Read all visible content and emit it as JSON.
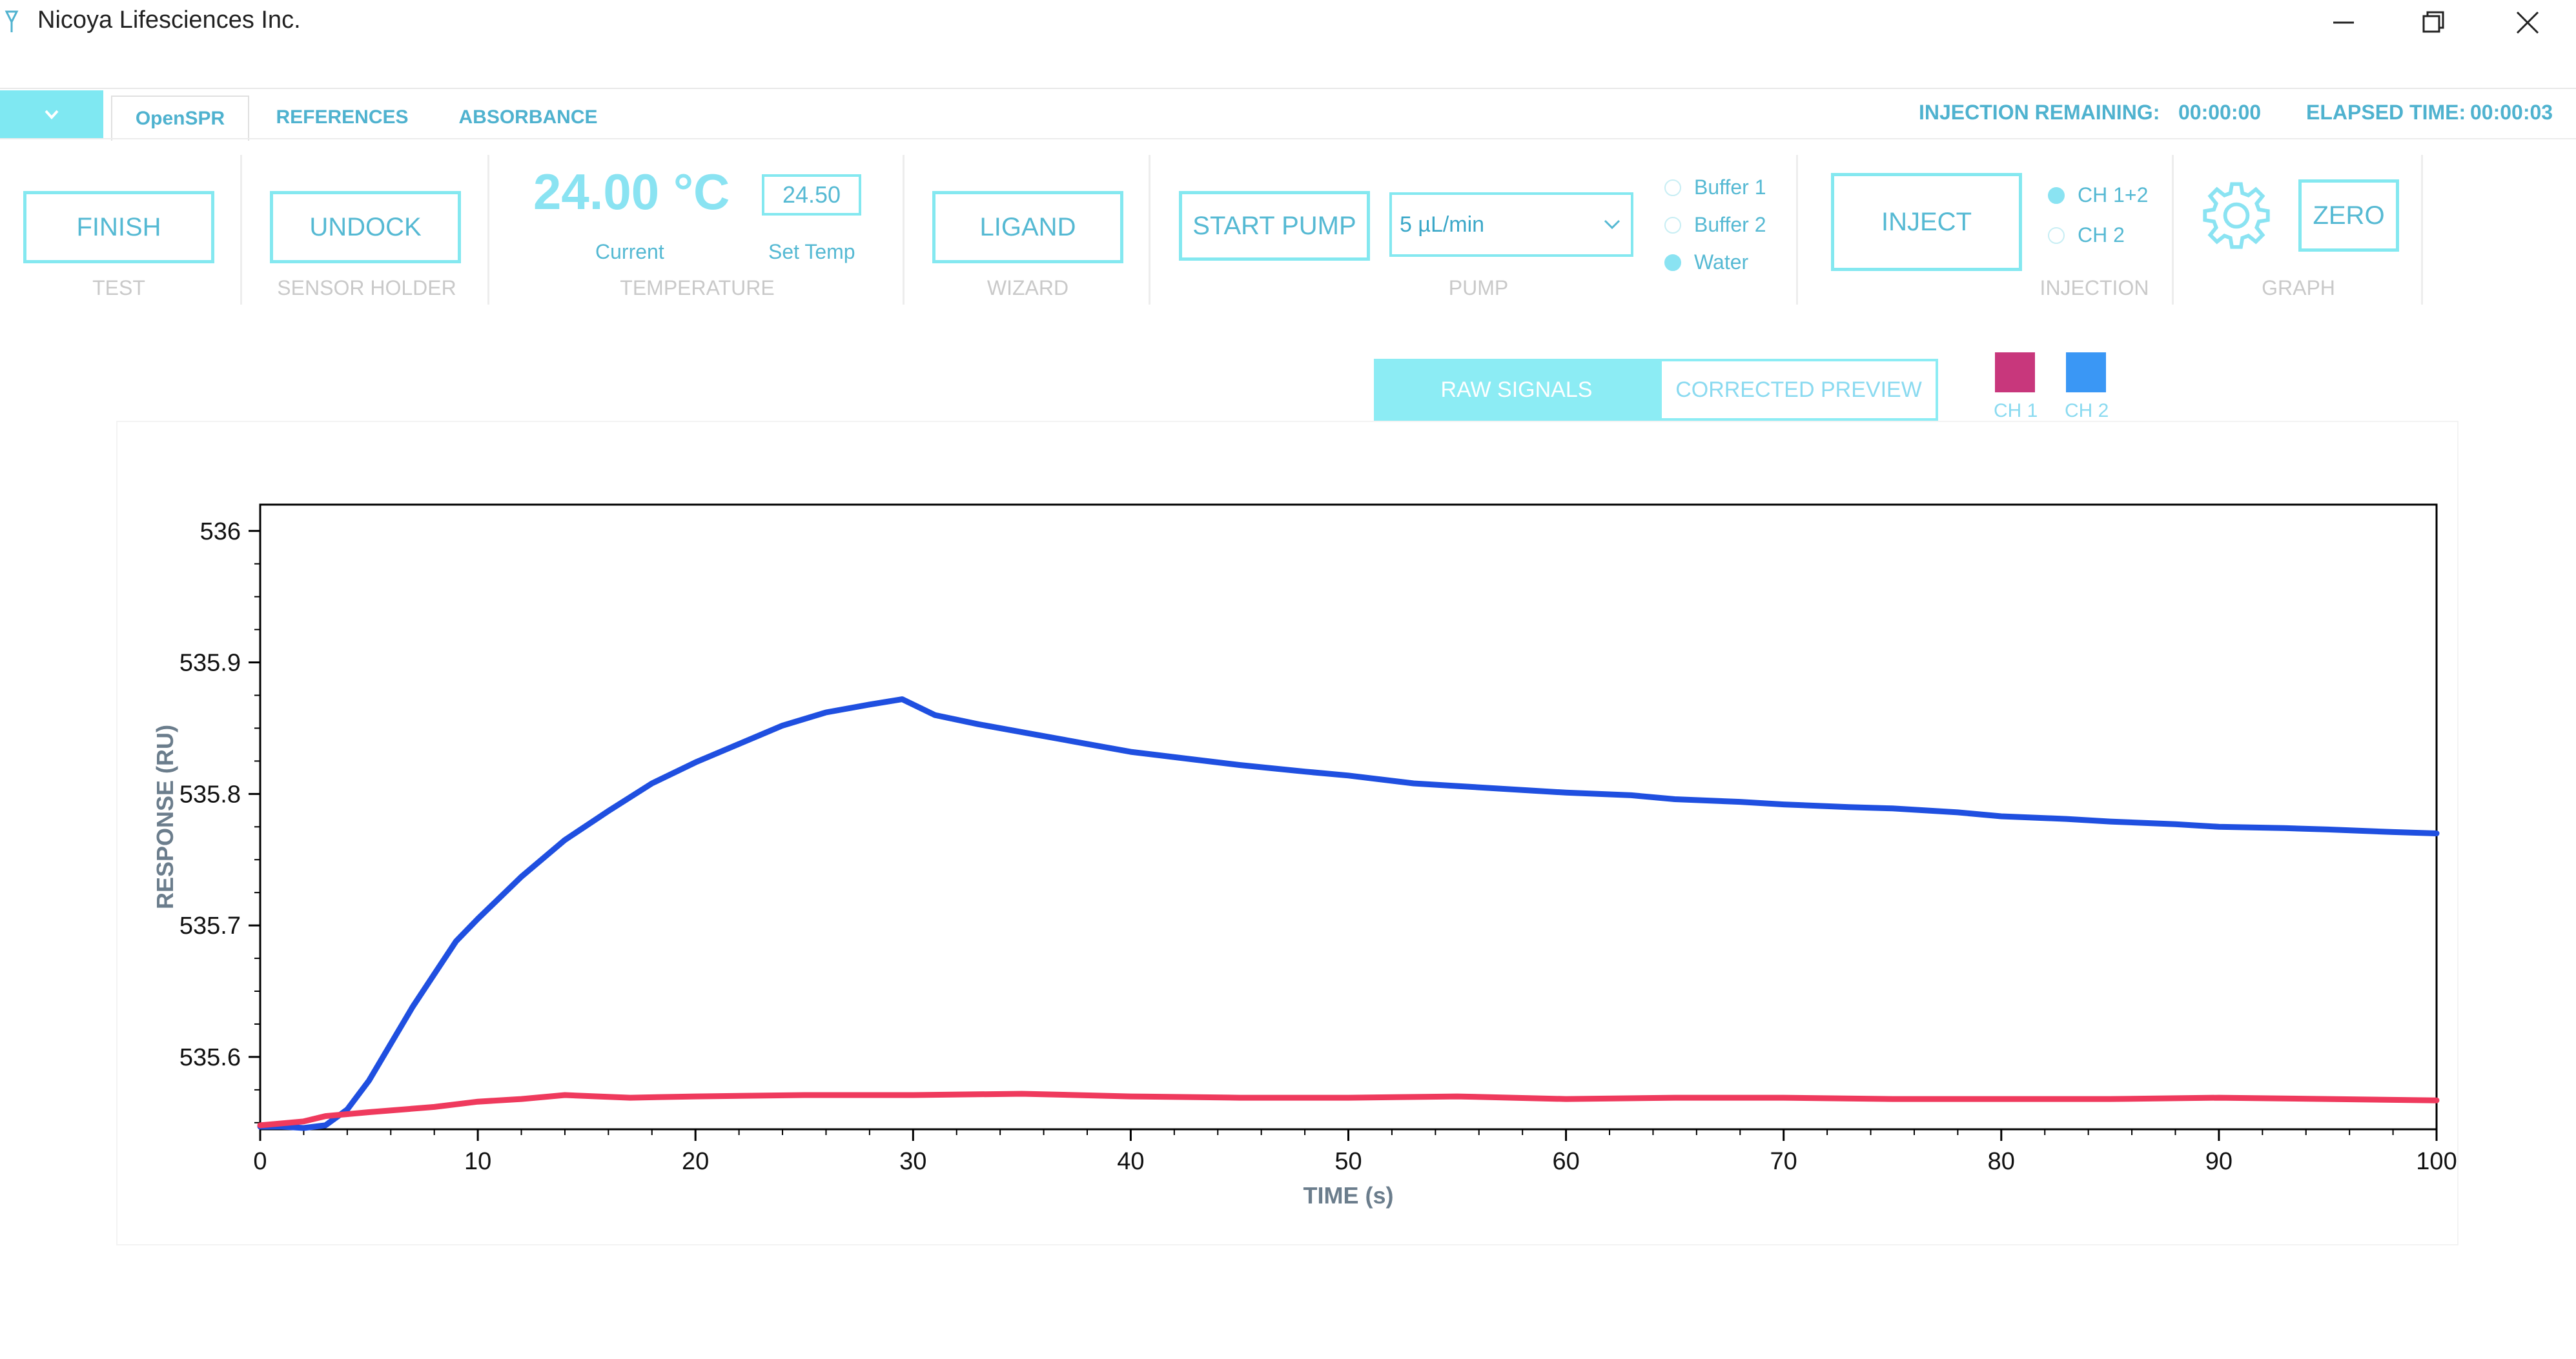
{
  "window": {
    "title": "Nicoya Lifesciences Inc.",
    "controls": {
      "minimize": "minimize-icon",
      "maximize": "restore-icon",
      "close": "close-icon"
    }
  },
  "tabs": [
    {
      "label": "OpenSPR",
      "active": true
    },
    {
      "label": "REFERENCES",
      "active": false
    },
    {
      "label": "ABSORBANCE",
      "active": false
    }
  ],
  "status": {
    "injection_remaining_label": "INJECTION REMAINING:",
    "injection_remaining_value": "00:00:00",
    "elapsed_label": "ELAPSED TIME:",
    "elapsed_value": "00:00:03"
  },
  "toolbar": {
    "test": {
      "button": "FINISH",
      "label": "TEST"
    },
    "sensor_holder": {
      "button": "UNDOCK",
      "label": "SENSOR HOLDER"
    },
    "temperature": {
      "current_value": "24.00 °C",
      "current_label": "Current",
      "set_value": "24.50",
      "set_label": "Set Temp",
      "label": "TEMPERATURE"
    },
    "wizard": {
      "button": "LIGAND",
      "label": "WIZARD"
    },
    "pump": {
      "button": "START PUMP",
      "flow_rate": "5 µL/min",
      "options": [
        {
          "label": "Buffer 1",
          "selected": false
        },
        {
          "label": "Buffer 2",
          "selected": false
        },
        {
          "label": "Water",
          "selected": true
        }
      ],
      "label": "PUMP"
    },
    "injection": {
      "button": "INJECT",
      "options": [
        {
          "label": "CH 1+2",
          "selected": true
        },
        {
          "label": "CH 2",
          "selected": false
        }
      ],
      "label": "INJECTION"
    },
    "graph": {
      "settings_icon": "gear-icon",
      "button": "ZERO",
      "label": "GRAPH"
    }
  },
  "graph_toggle": {
    "raw": "RAW SIGNALS",
    "corrected": "CORRECTED PREVIEW",
    "active": "raw"
  },
  "channels": [
    {
      "label": "CH 1",
      "color": "#c8377c"
    },
    {
      "label": "CH 2",
      "color": "#3a97f5"
    }
  ],
  "colors": {
    "accent": "#84e8f0",
    "accent_text": "#55b9d3",
    "ch1_line": "#ef3a5d",
    "ch2_line": "#1f4fe0"
  },
  "chart_data": {
    "type": "line",
    "xlabel": "TIME (s)",
    "ylabel": "RESPONSE (RU)",
    "xlim": [
      0,
      100
    ],
    "ylim": [
      535.545,
      536.02
    ],
    "xticks": [
      0,
      10,
      20,
      30,
      40,
      50,
      60,
      70,
      80,
      90,
      100
    ],
    "yticks": [
      535.6,
      535.7,
      535.8,
      535.9,
      536
    ],
    "ytick_labels": [
      "535.6",
      "535.7",
      "535.8",
      "535.9",
      "536"
    ],
    "grid": false,
    "series": [
      {
        "name": "CH 2",
        "color": "#1f4fe0",
        "x": [
          0,
          1,
          2,
          3,
          4,
          5,
          6,
          7,
          8,
          9,
          10,
          12,
          14,
          16,
          18,
          20,
          22,
          24,
          26,
          28,
          29.5,
          31,
          33,
          35,
          38,
          40,
          43,
          45,
          48,
          50,
          53,
          55,
          58,
          60,
          63,
          65,
          68,
          70,
          73,
          75,
          78,
          80,
          83,
          85,
          88,
          90,
          93,
          95,
          98,
          100
        ],
        "y": [
          535.547,
          535.547,
          535.546,
          535.548,
          535.56,
          535.582,
          535.61,
          535.638,
          535.663,
          535.688,
          535.705,
          535.737,
          535.765,
          535.787,
          535.808,
          535.824,
          535.838,
          535.852,
          535.862,
          535.868,
          535.872,
          535.86,
          535.853,
          535.847,
          535.838,
          535.832,
          535.826,
          535.822,
          535.817,
          535.814,
          535.808,
          535.806,
          535.803,
          535.801,
          535.799,
          535.796,
          535.794,
          535.792,
          535.79,
          535.789,
          535.786,
          535.783,
          535.781,
          535.779,
          535.777,
          535.775,
          535.774,
          535.773,
          535.771,
          535.77
        ]
      },
      {
        "name": "CH 1",
        "color": "#ef3a5d",
        "x": [
          0,
          2,
          3,
          5,
          8,
          10,
          12,
          14,
          17,
          20,
          25,
          30,
          35,
          40,
          45,
          50,
          55,
          60,
          65,
          70,
          75,
          80,
          85,
          90,
          95,
          100
        ],
        "y": [
          535.548,
          535.551,
          535.555,
          535.558,
          535.562,
          535.566,
          535.568,
          535.571,
          535.569,
          535.57,
          535.571,
          535.571,
          535.572,
          535.57,
          535.569,
          535.569,
          535.57,
          535.568,
          535.569,
          535.569,
          535.568,
          535.568,
          535.568,
          535.569,
          535.568,
          535.567
        ]
      }
    ]
  }
}
